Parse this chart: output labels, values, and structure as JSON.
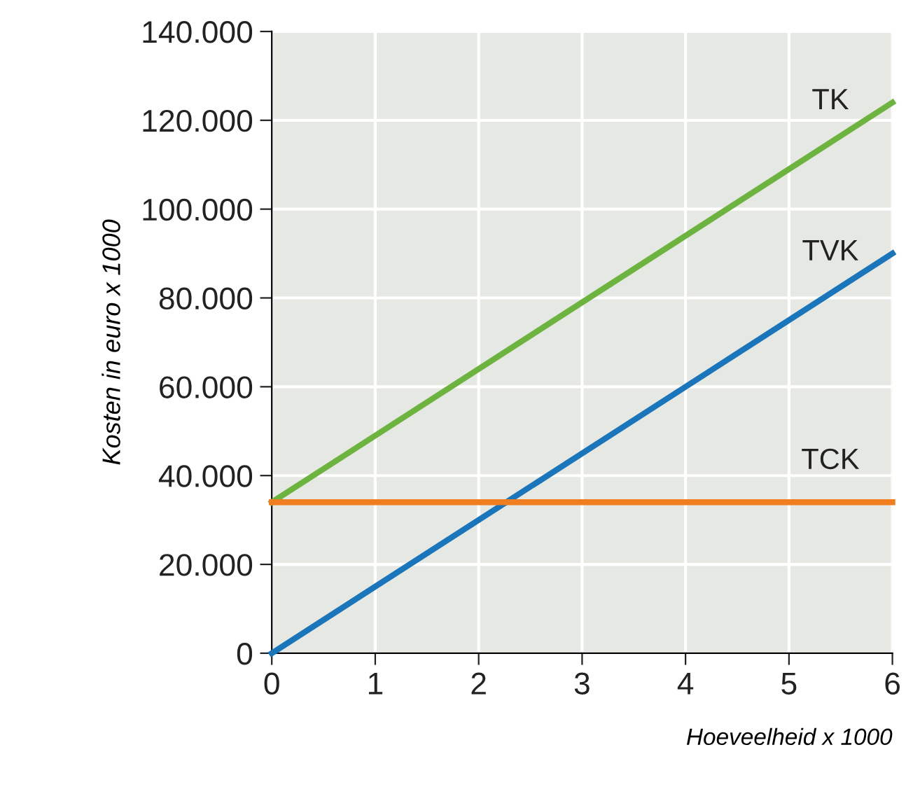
{
  "chart_data": {
    "type": "line",
    "xlabel": "Hoeveelheid x 1000",
    "ylabel": "Kosten in euro x 1000",
    "x": [
      0,
      6
    ],
    "series": [
      {
        "name": "TK",
        "color": "#6db33f",
        "values": [
          34000,
          124000
        ]
      },
      {
        "name": "TVK",
        "color": "#1b75bb",
        "values": [
          0,
          90000
        ]
      },
      {
        "name": "TCK",
        "color": "#f07d1f",
        "values": [
          34000,
          34000
        ]
      }
    ],
    "xlim": [
      0,
      6
    ],
    "xticks": [
      0,
      1,
      2,
      3,
      4,
      5,
      6
    ],
    "ylim": [
      0,
      140000
    ],
    "yticks": [
      {
        "value": 0,
        "label": "0"
      },
      {
        "value": 20000,
        "label": "20.000"
      },
      {
        "value": 40000,
        "label": "40.000"
      },
      {
        "value": 60000,
        "label": "60.000"
      },
      {
        "value": 80000,
        "label": "80.000"
      },
      {
        "value": 100000,
        "label": "100.000"
      },
      {
        "value": 120000,
        "label": "120.000"
      },
      {
        "value": 140000,
        "label": "140.000"
      }
    ],
    "grid": true,
    "marker": "none",
    "line_style": "solid"
  }
}
